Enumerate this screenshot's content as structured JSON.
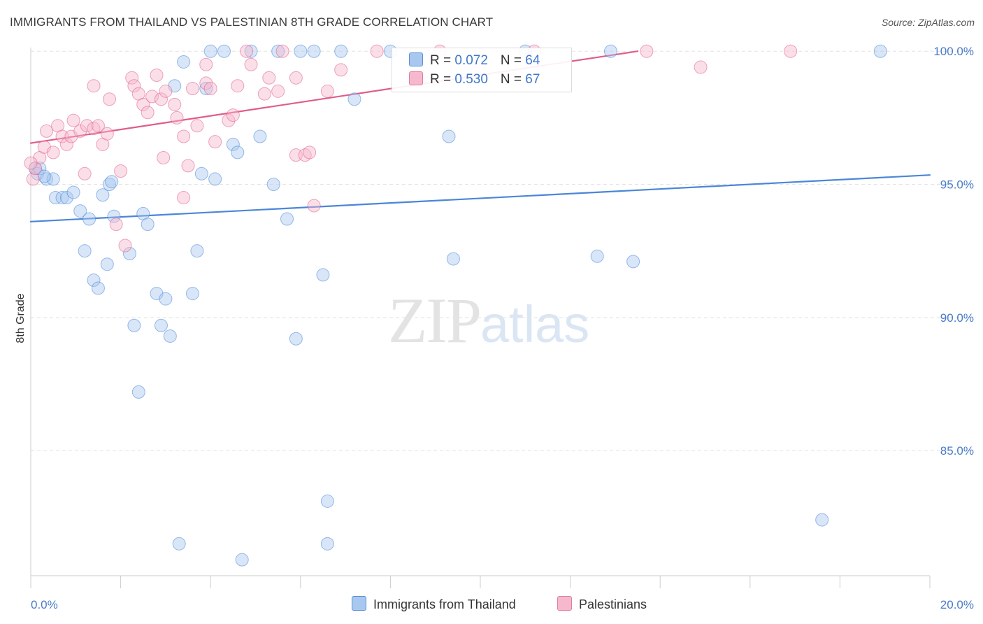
{
  "header": {
    "title": "IMMIGRANTS FROM THAILAND VS PALESTINIAN 8TH GRADE CORRELATION CHART",
    "source": "Source: ZipAtlas.com"
  },
  "watermark": {
    "zip": "ZIP",
    "atlas": "atlas"
  },
  "legend": {
    "rows": [
      {
        "r_label": "R = ",
        "r_value": "0.072",
        "n_label": "N = ",
        "n_value": "64",
        "color": "#a9c8f0"
      },
      {
        "r_label": "R = ",
        "r_value": "0.530",
        "n_label": "N = ",
        "n_value": "67",
        "color": "#f6b8cc"
      }
    ]
  },
  "bottom_legend": {
    "items": [
      {
        "label": "Immigrants from Thailand",
        "color": "#a9c8f0"
      },
      {
        "label": "Palestinians",
        "color": "#f6b8cc"
      }
    ]
  },
  "chart_data": {
    "type": "scatter",
    "title": "IMMIGRANTS FROM THAILAND VS PALESTINIAN 8TH GRADE CORRELATION CHART",
    "xlabel": "",
    "ylabel": "8th Grade",
    "xlim": [
      0,
      20
    ],
    "ylim": [
      80.3,
      100.4
    ],
    "x_tick_labels": [
      "0.0%",
      "20.0%"
    ],
    "y_ticks": [
      85,
      90,
      95,
      100
    ],
    "y_tick_labels": [
      "85.0%",
      "90.0%",
      "95.0%",
      "100.0%"
    ],
    "grid": true,
    "series": [
      {
        "name": "Immigrants from Thailand",
        "color": "#4a86d8",
        "fill": "#a9c8f0",
        "r": 0.072,
        "n": 64,
        "trend": {
          "x": [
            0,
            20
          ],
          "y": [
            93.6,
            95.35
          ]
        },
        "points": [
          [
            0.1,
            95.6
          ],
          [
            0.15,
            95.4
          ],
          [
            0.2,
            95.6
          ],
          [
            0.35,
            95.2
          ],
          [
            0.5,
            95.2
          ],
          [
            0.55,
            94.5
          ],
          [
            0.7,
            94.5
          ],
          [
            0.8,
            94.5
          ],
          [
            0.95,
            94.7
          ],
          [
            1.1,
            94.0
          ],
          [
            1.3,
            93.7
          ],
          [
            1.2,
            92.5
          ],
          [
            1.4,
            91.4
          ],
          [
            1.5,
            91.1
          ],
          [
            1.6,
            94.6
          ],
          [
            1.75,
            95.0
          ],
          [
            1.8,
            95.1
          ],
          [
            1.85,
            93.8
          ],
          [
            1.7,
            92.0
          ],
          [
            2.2,
            92.4
          ],
          [
            2.5,
            93.9
          ],
          [
            2.6,
            93.5
          ],
          [
            2.3,
            89.7
          ],
          [
            2.8,
            90.9
          ],
          [
            2.9,
            89.7
          ],
          [
            3.0,
            90.7
          ],
          [
            3.1,
            89.3
          ],
          [
            2.4,
            87.2
          ],
          [
            3.2,
            98.7
          ],
          [
            3.4,
            99.6
          ],
          [
            3.6,
            90.9
          ],
          [
            3.7,
            92.5
          ],
          [
            3.8,
            95.4
          ],
          [
            3.9,
            98.6
          ],
          [
            4.0,
            100.0
          ],
          [
            4.1,
            95.2
          ],
          [
            4.3,
            100.0
          ],
          [
            4.5,
            96.5
          ],
          [
            4.6,
            96.2
          ],
          [
            4.9,
            100.0
          ],
          [
            5.1,
            96.8
          ],
          [
            5.4,
            95.0
          ],
          [
            5.5,
            100.0
          ],
          [
            5.7,
            93.7
          ],
          [
            5.9,
            89.2
          ],
          [
            6.0,
            100.0
          ],
          [
            6.3,
            100.0
          ],
          [
            6.5,
            91.6
          ],
          [
            6.6,
            83.1
          ],
          [
            6.9,
            100.0
          ],
          [
            7.2,
            98.2
          ],
          [
            8.0,
            100.0
          ],
          [
            9.3,
            96.8
          ],
          [
            9.4,
            92.2
          ],
          [
            11.0,
            100.0
          ],
          [
            12.6,
            92.3
          ],
          [
            12.9,
            100.0
          ],
          [
            13.4,
            92.1
          ],
          [
            17.6,
            82.4
          ],
          [
            18.9,
            100.0
          ],
          [
            3.3,
            81.5
          ],
          [
            4.7,
            80.9
          ],
          [
            6.6,
            81.5
          ],
          [
            0.3,
            95.3
          ]
        ]
      },
      {
        "name": "Palestinians",
        "color": "#e05c8a",
        "fill": "#f6b8cc",
        "r": 0.53,
        "n": 67,
        "trend": {
          "x": [
            0,
            13.5
          ],
          "y": [
            96.55,
            100.0
          ]
        },
        "points": [
          [
            0.05,
            95.2
          ],
          [
            0.1,
            95.6
          ],
          [
            0.2,
            96.0
          ],
          [
            0.3,
            96.4
          ],
          [
            0.35,
            97.0
          ],
          [
            0.5,
            96.2
          ],
          [
            0.6,
            97.2
          ],
          [
            0.7,
            96.8
          ],
          [
            0.8,
            96.5
          ],
          [
            0.9,
            96.8
          ],
          [
            0.95,
            97.4
          ],
          [
            1.1,
            97.0
          ],
          [
            1.2,
            95.4
          ],
          [
            1.25,
            97.2
          ],
          [
            1.4,
            97.1
          ],
          [
            1.4,
            98.7
          ],
          [
            1.5,
            97.2
          ],
          [
            1.6,
            96.5
          ],
          [
            1.7,
            96.9
          ],
          [
            1.75,
            98.2
          ],
          [
            1.9,
            93.5
          ],
          [
            2.0,
            95.5
          ],
          [
            2.1,
            92.7
          ],
          [
            2.25,
            99.0
          ],
          [
            2.3,
            98.7
          ],
          [
            2.4,
            98.4
          ],
          [
            2.5,
            98.0
          ],
          [
            2.6,
            97.7
          ],
          [
            2.7,
            98.3
          ],
          [
            2.8,
            99.1
          ],
          [
            2.9,
            98.2
          ],
          [
            2.95,
            96.0
          ],
          [
            3.0,
            98.5
          ],
          [
            3.2,
            98.0
          ],
          [
            3.25,
            97.5
          ],
          [
            3.4,
            96.8
          ],
          [
            3.4,
            94.5
          ],
          [
            3.5,
            95.7
          ],
          [
            3.6,
            98.6
          ],
          [
            3.7,
            97.2
          ],
          [
            3.9,
            98.8
          ],
          [
            3.9,
            99.5
          ],
          [
            4.0,
            98.6
          ],
          [
            4.1,
            96.6
          ],
          [
            4.4,
            97.4
          ],
          [
            4.5,
            97.6
          ],
          [
            4.6,
            98.7
          ],
          [
            4.8,
            100.0
          ],
          [
            4.9,
            99.5
          ],
          [
            5.2,
            98.4
          ],
          [
            5.3,
            99.0
          ],
          [
            5.5,
            98.5
          ],
          [
            5.6,
            100.0
          ],
          [
            5.9,
            99.0
          ],
          [
            5.9,
            96.1
          ],
          [
            6.1,
            96.1
          ],
          [
            6.2,
            96.2
          ],
          [
            6.3,
            94.2
          ],
          [
            6.6,
            98.5
          ],
          [
            6.9,
            99.3
          ],
          [
            7.7,
            100.0
          ],
          [
            9.1,
            100.0
          ],
          [
            11.2,
            100.0
          ],
          [
            13.7,
            100.0
          ],
          [
            14.9,
            99.4
          ],
          [
            16.9,
            100.0
          ],
          [
            0.0,
            95.8
          ]
        ]
      }
    ]
  }
}
